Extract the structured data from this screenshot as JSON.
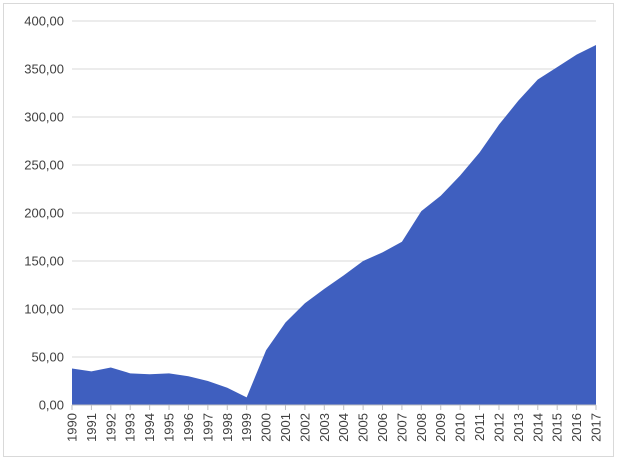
{
  "chart_data": {
    "type": "area",
    "title": "",
    "xlabel": "",
    "ylabel": "",
    "x": [
      "1990",
      "1991",
      "1992",
      "1993",
      "1994",
      "1995",
      "1996",
      "1997",
      "1998",
      "1999",
      "2000",
      "2001",
      "2002",
      "2003",
      "2004",
      "2005",
      "2006",
      "2007",
      "2008",
      "2009",
      "2010",
      "2011",
      "2012",
      "2013",
      "2014",
      "2015",
      "2016",
      "2017"
    ],
    "values": [
      38,
      35,
      39,
      33,
      32,
      33,
      30,
      25,
      18,
      8,
      57,
      86,
      106,
      121,
      135,
      150,
      159,
      170,
      202,
      218,
      239,
      263,
      292,
      317,
      339,
      352,
      365,
      375
    ],
    "ylim": [
      0,
      400
    ],
    "yticks": [
      "0,00",
      "50,00",
      "100,00",
      "150,00",
      "200,00",
      "250,00",
      "300,00",
      "350,00",
      "400,00"
    ],
    "grid": true,
    "legend": "none",
    "colors": {
      "fill": "#3f5fbf",
      "grid": "#d9d9d9",
      "axis": "#bfbfbf"
    }
  }
}
